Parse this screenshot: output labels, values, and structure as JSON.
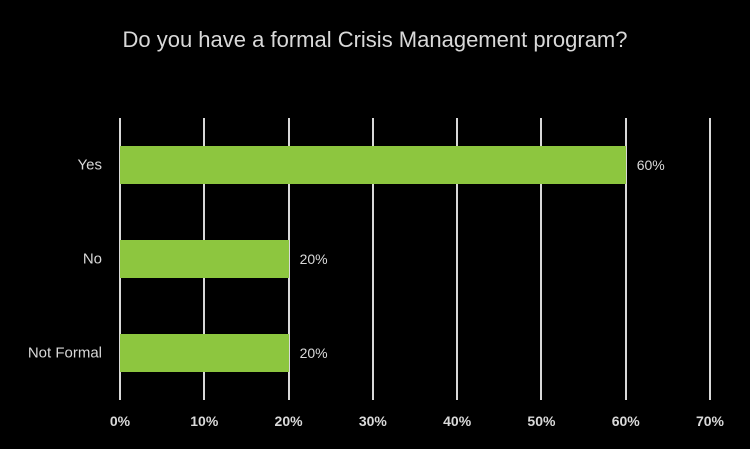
{
  "chart_data": {
    "type": "bar",
    "orientation": "horizontal",
    "title": "Do you have a formal Crisis Management program?",
    "categories": [
      "Yes",
      "No",
      "Not Formal"
    ],
    "values": [
      60,
      20,
      20
    ],
    "value_labels": [
      "60%",
      "20%",
      "20%"
    ],
    "x_ticks": [
      "0%",
      "10%",
      "20%",
      "30%",
      "40%",
      "50%",
      "60%",
      "70%"
    ],
    "xlim": [
      0,
      70
    ],
    "grid": true,
    "legend": "none",
    "bar_color": "#8dc63f",
    "background_color": "#000000",
    "text_color": "#d9d9d9",
    "gridline_color": "#d9d9d9"
  }
}
